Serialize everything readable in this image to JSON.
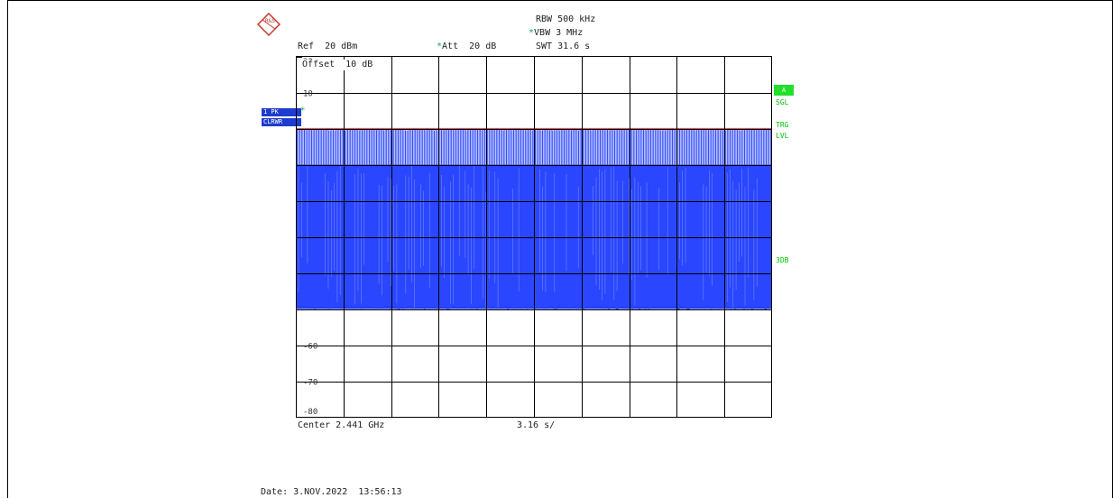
{
  "logo_text": "R&S",
  "header": {
    "rbw": "RBW 500 kHz",
    "vbw": "VBW 3 MHz",
    "swt": "SWT 31.6 s",
    "ref": "Ref  20 dBm",
    "att": "Att  20 dB",
    "offset": "Offset  10 dB"
  },
  "left_badges": {
    "trace": "1 PK",
    "mode": "CLRWR"
  },
  "right_badges": {
    "a": "A",
    "sgl": "SGL",
    "trg": "TRG",
    "lvl": "LVL",
    "db3": "3DB"
  },
  "footer": {
    "center": "Center 2.441 GHz",
    "span": "3.16 s/",
    "date": "Date: 3.NOV.2022  13:56:13"
  },
  "colors": {
    "trace": "#1f3cff",
    "reference_line": "#d9534f",
    "status": "#00c000"
  },
  "chart_data": {
    "type": "line",
    "y_unit": "dBm",
    "ylim": [
      -80,
      20
    ],
    "y_ticks": [
      {
        "value": 20,
        "label": "20"
      },
      {
        "value": 10,
        "label": "10"
      },
      {
        "value": -60,
        "label": "-60"
      },
      {
        "value": -70,
        "label": "-70"
      },
      {
        "value": -80,
        "label": "-80"
      }
    ],
    "x_divisions": 10,
    "grid": true,
    "reference_level_dbm": 0,
    "series": [
      {
        "high_dbm": 0,
        "burst_low_dbm": -10,
        "noise_floor_dbm": -50
      }
    ]
  }
}
